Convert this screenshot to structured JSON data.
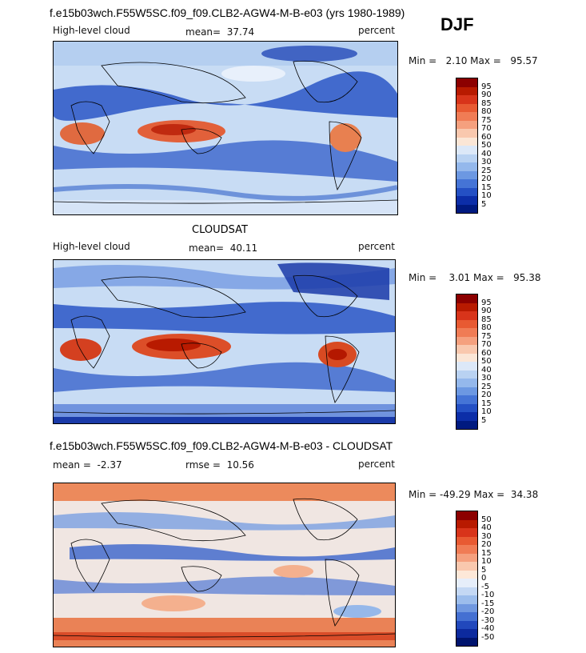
{
  "header": {
    "model_title": "f.e15b03wch.F55W5SC.f09_f09.CLB2-AGW4-M-B-e03 (yrs 1980-1989)",
    "season": "DJF"
  },
  "panels": [
    {
      "id": "model",
      "variable_label": "High-level cloud",
      "mean_text": "mean=",
      "mean_value": "37.74",
      "units": "percent",
      "min_label": "Min =",
      "min_value": "2.10",
      "max_label": "Max =",
      "max_value": "95.57",
      "colorbar_levels": [
        "95",
        "90",
        "85",
        "80",
        "75",
        "70",
        "60",
        "50",
        "40",
        "30",
        "25",
        "20",
        "15",
        "10",
        "5"
      ],
      "colorbar_colors": [
        "#8c0000",
        "#b81a00",
        "#d8341a",
        "#e85a32",
        "#f07c55",
        "#f5a07e",
        "#f9c8ae",
        "#fbe6d6",
        "#dce8f8",
        "#b9d2f2",
        "#94b8ec",
        "#6c98e2",
        "#4574d6",
        "#2450c4",
        "#0c2ea8",
        "#001a80"
      ]
    },
    {
      "id": "obs",
      "obs_title": "CLOUDSAT",
      "variable_label": "High-level cloud",
      "mean_text": "mean=",
      "mean_value": "40.11",
      "units": "percent",
      "min_label": "Min =",
      "min_value": "3.01",
      "max_label": "Max =",
      "max_value": "95.38",
      "colorbar_levels": [
        "95",
        "90",
        "85",
        "80",
        "75",
        "70",
        "60",
        "50",
        "40",
        "30",
        "25",
        "20",
        "15",
        "10",
        "5"
      ],
      "colorbar_colors": [
        "#8c0000",
        "#b81a00",
        "#d8341a",
        "#e85a32",
        "#f07c55",
        "#f5a07e",
        "#f9c8ae",
        "#fbe6d6",
        "#dce8f8",
        "#b9d2f2",
        "#94b8ec",
        "#6c98e2",
        "#4574d6",
        "#2450c4",
        "#0c2ea8",
        "#001a80"
      ]
    },
    {
      "id": "diff",
      "diff_title": "f.e15b03wch.F55W5SC.f09_f09.CLB2-AGW4-M-B-e03 - CLOUDSAT",
      "mean_text": "mean =",
      "mean_value": "-2.37",
      "rmse_text": "rmse =",
      "rmse_value": "10.56",
      "units": "percent",
      "min_label": "Min =",
      "min_value": "-49.29",
      "max_label": "Max =",
      "max_value": "34.38",
      "colorbar_levels": [
        "50",
        "40",
        "30",
        "20",
        "15",
        "10",
        "5",
        "0",
        "-5",
        "-10",
        "-15",
        "-20",
        "-30",
        "-40",
        "-50"
      ],
      "colorbar_colors": [
        "#8c0000",
        "#b81a00",
        "#d8341a",
        "#e85a32",
        "#f07c55",
        "#f5a07e",
        "#f9c8ae",
        "#fde8d8",
        "#e6eefa",
        "#c4d8f4",
        "#9cbdec",
        "#7098e0",
        "#4470d2",
        "#2148bc",
        "#0c2a9e",
        "#00146e"
      ]
    }
  ],
  "chart_data": [
    {
      "type": "heatmap",
      "title": "f.e15b03wch.F55W5SC.f09_f09.CLB2-AGW4-M-B-e03 (yrs 1980-1989)",
      "subtitle": "DJF",
      "variable": "High-level cloud",
      "units": "percent",
      "mean": 37.74,
      "min": 2.1,
      "max": 95.57,
      "levels": [
        5,
        10,
        15,
        20,
        25,
        30,
        40,
        50,
        60,
        70,
        75,
        80,
        85,
        90,
        95
      ]
    },
    {
      "type": "heatmap",
      "title": "CLOUDSAT",
      "variable": "High-level cloud",
      "units": "percent",
      "mean": 40.11,
      "min": 3.01,
      "max": 95.38,
      "levels": [
        5,
        10,
        15,
        20,
        25,
        30,
        40,
        50,
        60,
        70,
        75,
        80,
        85,
        90,
        95
      ]
    },
    {
      "type": "heatmap",
      "title": "f.e15b03wch.F55W5SC.f09_f09.CLB2-AGW4-M-B-e03 - CLOUDSAT",
      "units": "percent",
      "mean": -2.37,
      "rmse": 10.56,
      "min": -49.29,
      "max": 34.38,
      "levels": [
        -50,
        -40,
        -30,
        -20,
        -15,
        -10,
        -5,
        0,
        5,
        10,
        15,
        20,
        30,
        40,
        50
      ]
    }
  ]
}
